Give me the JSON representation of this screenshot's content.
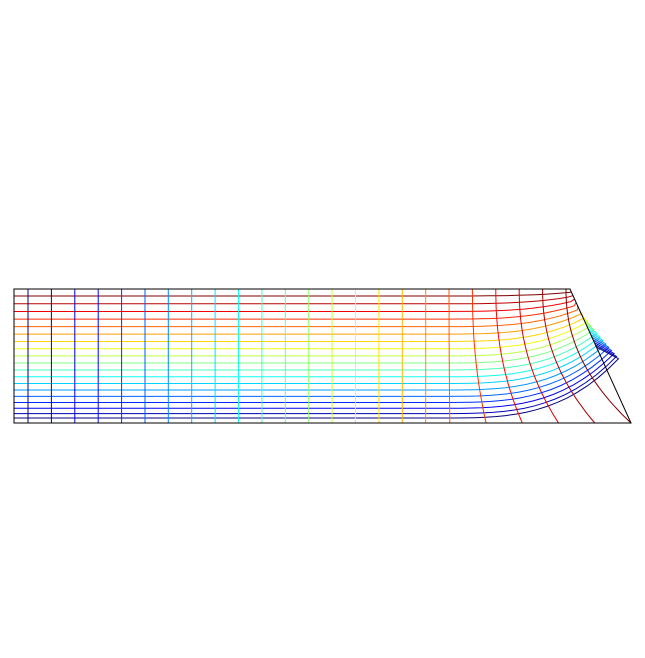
{
  "figure": {
    "description_visible_text": "",
    "mesh": {
      "horizontal_curves_count": 19,
      "vertical_curves_count": 24,
      "horizontal_colormap": [
        "#00007f",
        "#0000ff",
        "#007fff",
        "#00ffff",
        "#7fff7f",
        "#ffff00",
        "#ff7f00",
        "#ff0000",
        "#7f0000"
      ],
      "vertical_colormap": [
        "#00007f",
        "#0000ff",
        "#007fff",
        "#00ffff",
        "#7fff7f",
        "#ffff00",
        "#ff7f00",
        "#ff0000",
        "#7f0000"
      ],
      "outline_color": "#000000"
    }
  }
}
